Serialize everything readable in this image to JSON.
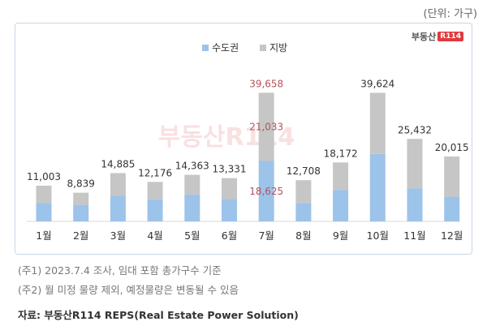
{
  "unit_label": "(단위: 가구)",
  "logo": {
    "text": "부동산",
    "badge": "R114"
  },
  "colors": {
    "capital": "#9cc3ea",
    "local": "#c6c6c6",
    "highlight_text": "#b5525b",
    "label_text": "#333333",
    "watermark": "#f4c6c8"
  },
  "notes": [
    "(주1) 2023.7.4 조사, 임대 포함 총가구수 기준",
    "(주2) 월 미정 물량 제외, 예정물량은 변동될 수 있음"
  ],
  "source": "자료: 부동산R114 REPS(Real Estate Power Solution)",
  "chart_data": {
    "type": "bar",
    "stacked": true,
    "categories": [
      "1월",
      "2월",
      "3월",
      "4월",
      "5월",
      "6월",
      "7월",
      "8월",
      "9월",
      "10월",
      "11월",
      "12월"
    ],
    "totals_labels": [
      "11,003",
      "8,839",
      "14,885",
      "12,176",
      "14,363",
      "13,331",
      "39,658",
      "12,708",
      "18,172",
      "39,624",
      "25,432",
      "20,015"
    ],
    "totals": [
      11003,
      8839,
      14885,
      12176,
      14363,
      13331,
      39658,
      12708,
      18172,
      39624,
      25432,
      20015
    ],
    "series": [
      {
        "name": "수도권",
        "values": [
          5700,
          5100,
          7900,
          6800,
          8300,
          6900,
          18625,
          5600,
          9700,
          20800,
          10200,
          7600
        ]
      },
      {
        "name": "지방",
        "values": [
          5303,
          3739,
          6985,
          5376,
          6063,
          6431,
          21033,
          7108,
          8472,
          18824,
          15232,
          12415
        ]
      }
    ],
    "highlight": {
      "category": "7월",
      "total_label": "39,658",
      "local_label": "21,033",
      "capital_label": "18,625"
    },
    "legend_position": "top-center",
    "grid": false,
    "ylim": [
      0,
      44000
    ]
  }
}
